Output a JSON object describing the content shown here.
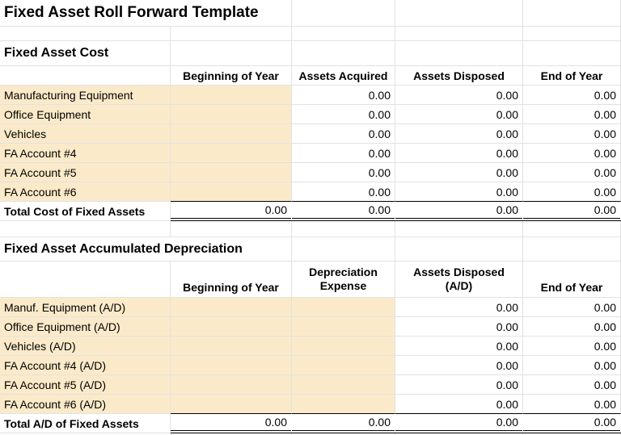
{
  "title": "Fixed Asset Roll Forward Template",
  "colors": {
    "input_cell_fill": "#fbeac9",
    "gridline": "#e2e2e2"
  },
  "placeholder_value": "0.00",
  "sections": [
    {
      "heading": "Fixed Asset Cost",
      "columns": [
        "Beginning of Year",
        "Assets Acquired",
        "Assets Disposed",
        "End of Year"
      ],
      "rows": [
        {
          "label": "Manufacturing Equipment",
          "values": [
            "0.00",
            "0.00",
            "0.00"
          ]
        },
        {
          "label": "Office Equipment",
          "values": [
            "0.00",
            "0.00",
            "0.00"
          ]
        },
        {
          "label": "Vehicles",
          "values": [
            "0.00",
            "0.00",
            "0.00"
          ]
        },
        {
          "label": "FA Account #4",
          "values": [
            "0.00",
            "0.00",
            "0.00"
          ]
        },
        {
          "label": "FA Account #5",
          "values": [
            "0.00",
            "0.00",
            "0.00"
          ]
        },
        {
          "label": "FA Account #6",
          "values": [
            "0.00",
            "0.00",
            "0.00"
          ]
        }
      ],
      "total": {
        "label": "Total Cost of Fixed Assets",
        "values": [
          "0.00",
          "0.00",
          "0.00",
          "0.00"
        ]
      }
    },
    {
      "heading": "Fixed Asset Accumulated Depreciation",
      "columns": [
        "Beginning of Year",
        "Depreciation Expense",
        "Assets Disposed (A/D)",
        "End of Year"
      ],
      "rows": [
        {
          "label": "Manuf. Equipment (A/D)",
          "values": [
            "0.00",
            "0.00"
          ]
        },
        {
          "label": "Office Equipment (A/D)",
          "values": [
            "0.00",
            "0.00"
          ]
        },
        {
          "label": "Vehicles (A/D)",
          "values": [
            "0.00",
            "0.00"
          ]
        },
        {
          "label": "FA Account #4 (A/D)",
          "values": [
            "0.00",
            "0.00"
          ]
        },
        {
          "label": "FA Account #5 (A/D)",
          "values": [
            "0.00",
            "0.00"
          ]
        },
        {
          "label": "FA Account #6 (A/D)",
          "values": [
            "0.00",
            "0.00"
          ]
        }
      ],
      "total": {
        "label": "Total A/D of Fixed Assets",
        "values": [
          "0.00",
          "0.00",
          "0.00",
          "0.00"
        ]
      }
    }
  ]
}
